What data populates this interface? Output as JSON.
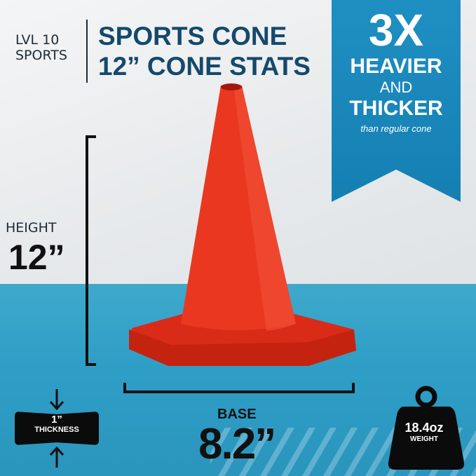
{
  "brand": {
    "line1": "LVL 10",
    "line2": "SPORTS"
  },
  "title": {
    "line1": "SPORTS CONE",
    "line2": "12” CONE STATS"
  },
  "banner": {
    "big": "3X",
    "line1": "HEAVIER",
    "line2": "AND",
    "line3": "THICKER",
    "note": "than regular cone",
    "color": "#1a88ba"
  },
  "height": {
    "label": "HEIGHT",
    "value": "12”"
  },
  "base": {
    "label": "BASE",
    "value": "8.2”"
  },
  "thickness": {
    "value": "1”",
    "label": "THICKNESS"
  },
  "weight": {
    "value": "18.4oz",
    "label": "WEIGHT",
    "icon": "weight-icon"
  },
  "colors": {
    "cone": "#e8321f",
    "title": "#14496b",
    "turf": "#2f9fc7"
  }
}
